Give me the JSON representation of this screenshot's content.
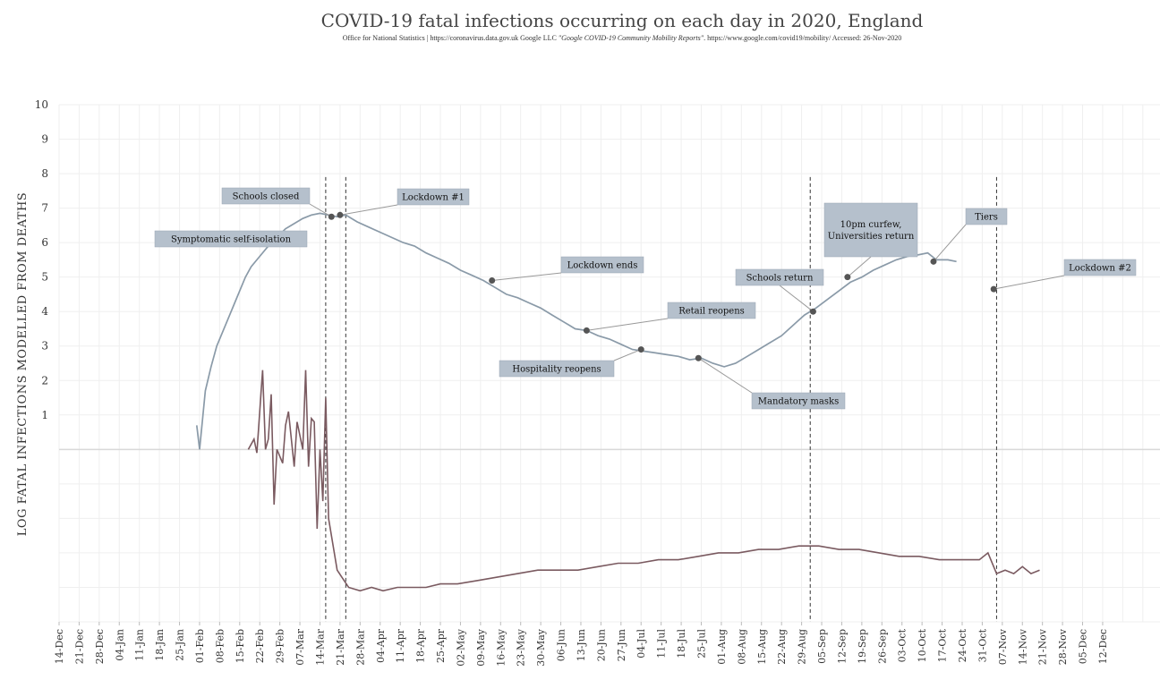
{
  "chart_data": {
    "type": "line",
    "title": "COVID-19 fatal infections occurring on each day in 2020, England",
    "subtitle_plain": "Office for National Statistics | https://coronavirus.data.gov.uk Google LLC ",
    "subtitle_italic": "\"Google COVID-19 Community Mobility Reports\"",
    "subtitle_tail": ". https://www.google.com/covid19/mobility/ Accessed: 26-Nov-2020",
    "ylabel": "LOG FATAL INFECTIONS MODELLED FROM DEATHS",
    "xlabel": "",
    "ylim": [
      -5,
      10
    ],
    "yticks": [
      "1",
      "2",
      "3",
      "4",
      "5",
      "6",
      "7",
      "8",
      "9",
      "10"
    ],
    "x_start": "2019-12-14",
    "x_end": "2021-01-01",
    "xtick_labels": [
      "14-Dec",
      "21-Dec",
      "28-Dec",
      "04-Jan",
      "11-Jan",
      "18-Jan",
      "25-Jan",
      "01-Feb",
      "08-Feb",
      "15-Feb",
      "22-Feb",
      "29-Feb",
      "07-Mar",
      "14-Mar",
      "21-Mar",
      "28-Mar",
      "04-Apr",
      "11-Apr",
      "18-Apr",
      "25-Apr",
      "02-May",
      "09-May",
      "16-May",
      "23-May",
      "30-May",
      "06-Jun",
      "13-Jun",
      "20-Jun",
      "27-Jun",
      "04-Jul",
      "11-Jul",
      "18-Jul",
      "25-Jul",
      "01-Aug",
      "08-Aug",
      "15-Aug",
      "22-Aug",
      "29-Aug",
      "05-Sep",
      "12-Sep",
      "19-Sep",
      "26-Sep",
      "03-Oct",
      "10-Oct",
      "17-Oct",
      "24-Oct",
      "31-Oct",
      "07-Nov",
      "14-Nov",
      "21-Nov",
      "28-Nov",
      "05-Dec",
      "12-Dec"
    ],
    "grid": true,
    "legend": "none",
    "colors": {
      "upper_series": "#8a9aa8",
      "lower_series": "#7a5a60",
      "annotation_box": "#b5c0cc"
    },
    "series": [
      {
        "x": [
          "2020-01-31",
          "2020-02-01",
          "2020-02-03",
          "2020-02-05",
          "2020-02-07",
          "2020-02-09",
          "2020-02-11",
          "2020-02-13",
          "2020-02-15",
          "2020-02-17",
          "2020-02-19",
          "2020-02-22",
          "2020-02-25",
          "2020-02-28",
          "2020-03-02",
          "2020-03-05",
          "2020-03-08",
          "2020-03-11",
          "2020-03-14",
          "2020-03-17",
          "2020-03-20",
          "2020-03-23",
          "2020-03-27",
          "2020-03-31",
          "2020-04-04",
          "2020-04-08",
          "2020-04-12",
          "2020-04-16",
          "2020-04-20",
          "2020-04-24",
          "2020-04-28",
          "2020-05-02",
          "2020-05-06",
          "2020-05-10",
          "2020-05-14",
          "2020-05-18",
          "2020-05-22",
          "2020-05-26",
          "2020-05-30",
          "2020-06-03",
          "2020-06-07",
          "2020-06-11",
          "2020-06-15",
          "2020-06-19",
          "2020-06-23",
          "2020-06-27",
          "2020-07-01",
          "2020-07-05",
          "2020-07-09",
          "2020-07-13",
          "2020-07-17",
          "2020-07-21",
          "2020-07-25",
          "2020-07-29",
          "2020-08-02",
          "2020-08-06",
          "2020-08-10",
          "2020-08-14",
          "2020-08-18",
          "2020-08-22",
          "2020-08-26",
          "2020-08-30",
          "2020-09-03",
          "2020-09-07",
          "2020-09-11",
          "2020-09-15",
          "2020-09-19",
          "2020-09-23",
          "2020-09-27",
          "2020-10-01",
          "2020-10-05",
          "2020-10-09",
          "2020-10-12",
          "2020-10-15",
          "2020-10-19",
          "2020-10-22"
        ],
        "values": [
          0.7,
          0.0,
          1.7,
          2.4,
          3.0,
          3.4,
          3.8,
          4.2,
          4.6,
          5.0,
          5.3,
          5.6,
          5.9,
          6.15,
          6.4,
          6.55,
          6.7,
          6.8,
          6.85,
          6.8,
          6.75,
          6.8,
          6.6,
          6.45,
          6.3,
          6.15,
          6.0,
          5.9,
          5.7,
          5.55,
          5.4,
          5.2,
          5.05,
          4.9,
          4.7,
          4.5,
          4.4,
          4.25,
          4.1,
          3.9,
          3.7,
          3.5,
          3.45,
          3.3,
          3.2,
          3.05,
          2.9,
          2.85,
          2.8,
          2.75,
          2.7,
          2.6,
          2.65,
          2.5,
          2.4,
          2.5,
          2.7,
          2.9,
          3.1,
          3.3,
          3.6,
          3.9,
          4.1,
          4.35,
          4.6,
          4.85,
          5.0,
          5.2,
          5.35,
          5.5,
          5.6,
          5.65,
          5.7,
          5.5,
          5.5,
          5.45
        ]
      },
      {
        "x": [
          "2020-02-18",
          "2020-02-20",
          "2020-02-21",
          "2020-02-23",
          "2020-02-24",
          "2020-02-25",
          "2020-02-26",
          "2020-02-27",
          "2020-02-28",
          "2020-03-01",
          "2020-03-02",
          "2020-03-03",
          "2020-03-05",
          "2020-03-06",
          "2020-03-08",
          "2020-03-09",
          "2020-03-10",
          "2020-03-11",
          "2020-03-12",
          "2020-03-13",
          "2020-03-14",
          "2020-03-15",
          "2020-03-16",
          "2020-03-17",
          "2020-03-20",
          "2020-03-24",
          "2020-03-28",
          "2020-04-01",
          "2020-04-05",
          "2020-04-10",
          "2020-04-15",
          "2020-04-20",
          "2020-04-25",
          "2020-05-01",
          "2020-05-08",
          "2020-05-15",
          "2020-05-22",
          "2020-05-29",
          "2020-06-05",
          "2020-06-12",
          "2020-06-19",
          "2020-06-26",
          "2020-07-03",
          "2020-07-10",
          "2020-07-17",
          "2020-07-24",
          "2020-07-31",
          "2020-08-07",
          "2020-08-14",
          "2020-08-21",
          "2020-08-28",
          "2020-09-04",
          "2020-09-11",
          "2020-09-18",
          "2020-09-25",
          "2020-10-02",
          "2020-10-09",
          "2020-10-16",
          "2020-10-23",
          "2020-10-30",
          "2020-11-02",
          "2020-11-05",
          "2020-11-08",
          "2020-11-11",
          "2020-11-14",
          "2020-11-17",
          "2020-11-20"
        ],
        "values": [
          0.0,
          0.3,
          -0.1,
          2.3,
          0.0,
          0.3,
          1.6,
          -1.6,
          0.0,
          -0.4,
          0.7,
          1.1,
          -0.5,
          0.8,
          0.0,
          2.3,
          -0.5,
          0.9,
          0.8,
          -2.3,
          0.0,
          -1.5,
          1.5,
          -2.0,
          -3.5,
          -4.0,
          -4.1,
          -4.0,
          -4.1,
          -4.0,
          -4.0,
          -4.0,
          -3.9,
          -3.9,
          -3.8,
          -3.7,
          -3.6,
          -3.5,
          -3.5,
          -3.5,
          -3.4,
          -3.3,
          -3.3,
          -3.2,
          -3.2,
          -3.1,
          -3.0,
          -3.0,
          -2.9,
          -2.9,
          -2.8,
          -2.8,
          -2.9,
          -2.9,
          -3.0,
          -3.1,
          -3.1,
          -3.2,
          -3.2,
          -3.2,
          -3.0,
          -3.6,
          -3.5,
          -3.6,
          -3.4,
          -3.6,
          -3.5
        ]
      }
    ],
    "event_lines": [
      {
        "date": "2020-03-16"
      },
      {
        "date": "2020-03-23"
      },
      {
        "date": "2020-09-01"
      },
      {
        "date": "2020-11-05"
      }
    ],
    "annotations": [
      {
        "lines": [
          "Symptomatic self-isolation"
        ],
        "date": "2020-03-02",
        "value": 6.15
      },
      {
        "lines": [
          "Schools closed"
        ],
        "date": "2020-03-18",
        "value": 6.75
      },
      {
        "lines": [
          "Lockdown #1"
        ],
        "date": "2020-03-21",
        "value": 6.8
      },
      {
        "lines": [
          "Lockdown ends"
        ],
        "date": "2020-05-13",
        "value": 4.9
      },
      {
        "lines": [
          "Retail reopens"
        ],
        "date": "2020-06-15",
        "value": 3.45
      },
      {
        "lines": [
          "Hospitality reopens"
        ],
        "date": "2020-07-04",
        "value": 2.9
      },
      {
        "lines": [
          "Mandatory masks"
        ],
        "date": "2020-07-24",
        "value": 2.65
      },
      {
        "lines": [
          "Schools return"
        ],
        "date": "2020-09-02",
        "value": 4.0
      },
      {
        "lines": [
          "10pm curfew,",
          "Universities return"
        ],
        "date": "2020-09-14",
        "value": 5.0
      },
      {
        "lines": [
          "Tiers"
        ],
        "date": "2020-10-14",
        "value": 5.45
      },
      {
        "lines": [
          "Lockdown #2"
        ],
        "date": "2020-11-04",
        "value": 4.65
      }
    ]
  }
}
